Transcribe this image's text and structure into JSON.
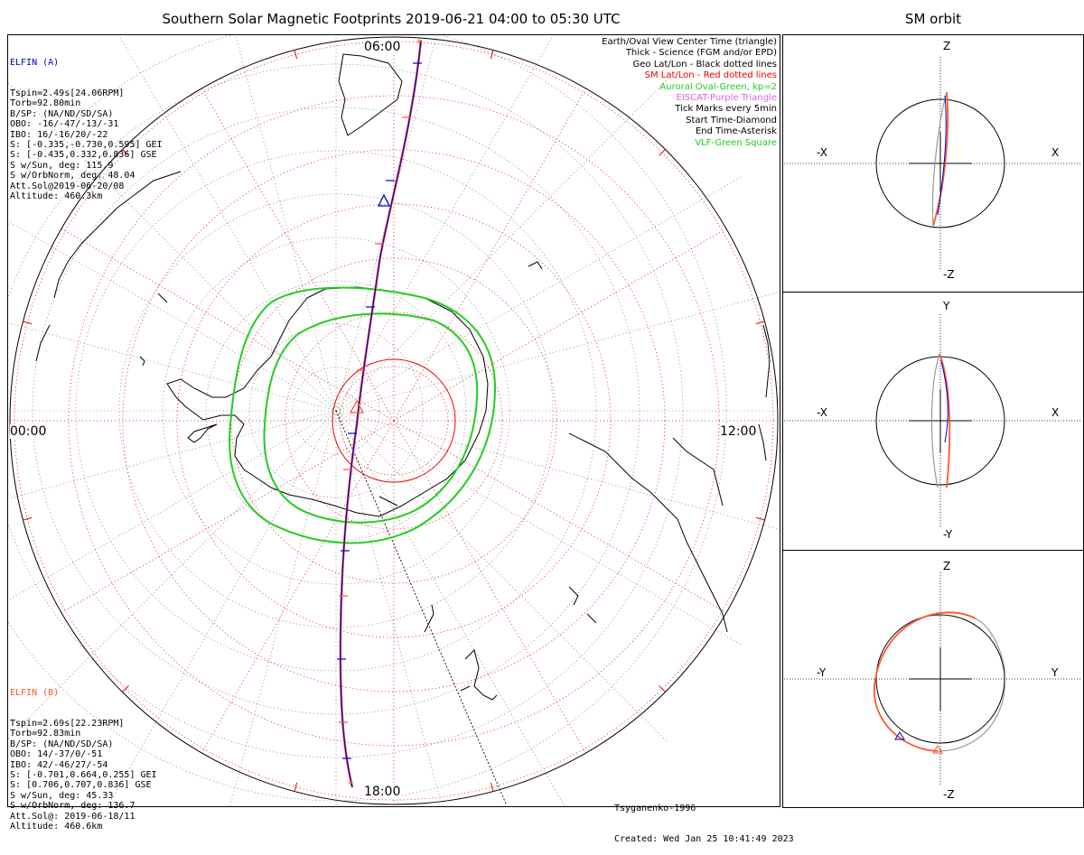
{
  "title": "Southern Solar Magnetic Footprints 2019-06-21 04:00 to 05:30 UTC",
  "side_title": "SM orbit",
  "probe_a": {
    "name": "ELFIN (A)",
    "color": "#0000cc",
    "lines": [
      "Tspin=2.49s[24.06RPM]",
      "Torb=92.80min",
      "B/SP: (NA/ND/SD/SA)",
      "OBO: -16/-47/-13/-31",
      "IBO: 16/-16/20/-22",
      "S: [-0.335,-0.730,0.595] GEI",
      "S: [-0.435,0.332,0.836] GSE",
      "S w/Sun, deg: 115.9",
      "S w/OrbNorm, deg: 48.04",
      "Att.Sol@2019-06-20/08",
      "Altitude: 460.3km"
    ]
  },
  "probe_b": {
    "name": "ELFIN (B)",
    "color": "#ff5533",
    "lines": [
      "Tspin=2.69s[22.23RPM]",
      "Torb=92.83min",
      "B/SP: (NA/ND/SD/SA)",
      "OBO: 14/-37/0/-51",
      "IBO: 42/-46/27/-54",
      "S: [-0.701,0.664,0.255] GEI",
      "S: [0.706,0.707,0.836] GSE",
      "S w/Sun, deg: 45.33",
      "S w/OrbNorm, deg: 136.7",
      "Att.Sol@: 2019-06-18/11",
      "Altitude: 460.6km"
    ]
  },
  "legend": [
    {
      "text": "Earth/Oval View Center Time (triangle)",
      "color": "#000000"
    },
    {
      "text": "Thick - Science (FGM and/or EPD)",
      "color": "#000000"
    },
    {
      "text": "Geo Lat/Lon - Black dotted lines",
      "color": "#000000"
    },
    {
      "text": "SM Lat/Lon - Red dotted lines",
      "color": "#ee0000"
    },
    {
      "text": "Auroral Oval-Green, kp=2",
      "color": "#22cc22"
    },
    {
      "text": "EISCAT-Purple Triangle",
      "color": "#dd66dd"
    },
    {
      "text": "Tick Marks every 5min",
      "color": "#000000"
    },
    {
      "text": "Start Time-Diamond",
      "color": "#000000"
    },
    {
      "text": "End Time-Asterisk",
      "color": "#000000"
    },
    {
      "text": "VLF-Green Square",
      "color": "#22cc22"
    }
  ],
  "mlt_labels": {
    "top": "06:00",
    "left": "00:00",
    "right": "12:00",
    "bottom": "18:00"
  },
  "footer": {
    "model": "Tsyganenko-1996",
    "created": "Created: Wed Jan 25 10:41:49 2023"
  },
  "panels": [
    {
      "top": "Z",
      "bottom": "-Z",
      "left": "-X",
      "right": "X"
    },
    {
      "top": "Y",
      "bottom": "-Y",
      "left": "-X",
      "right": "X"
    },
    {
      "top": "Z",
      "bottom": "-Z",
      "left": "-Y",
      "right": "Y"
    }
  ],
  "chart_data": {
    "type": "scatter",
    "projection": "southern polar stereographic, SM coordinates",
    "series": [
      {
        "name": "ELFIN (A)",
        "color": "#0000cc"
      },
      {
        "name": "ELFIN (B)",
        "color": "#ff5533"
      }
    ],
    "aurora_color": "#22cc22",
    "sm_grid_color": "#ee0000"
  }
}
